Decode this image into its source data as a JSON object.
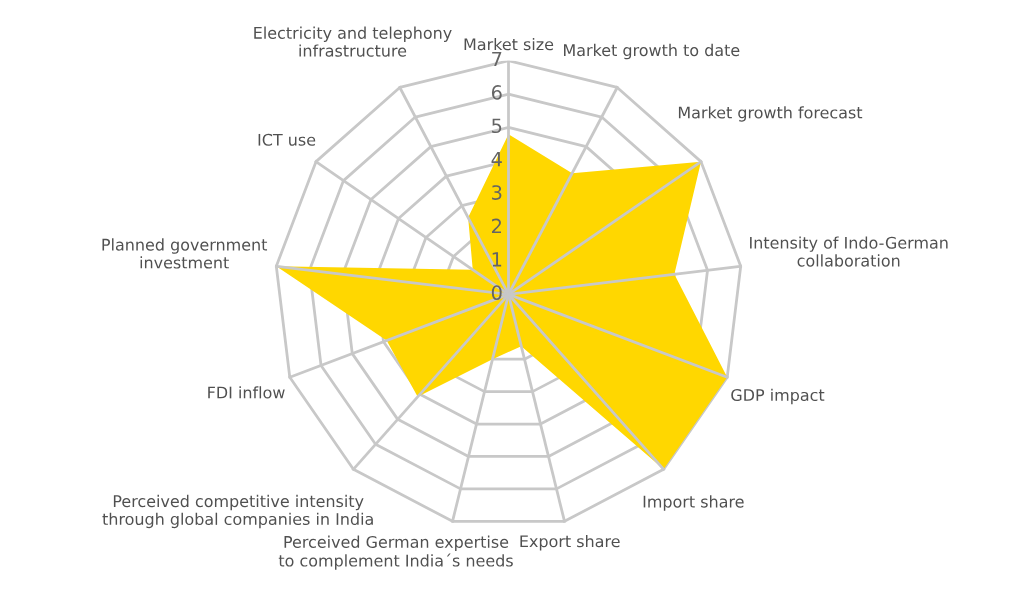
{
  "chart_data": {
    "type": "radar",
    "categories": [
      "Market size",
      "Market growth to date",
      "Market growth forecast",
      "Intensity of Indo-German collaboration",
      "GDP impact",
      "Import share",
      "Export share",
      "Perceived German expertise to complement India´s needs",
      "Perceived competitive intensity through global companies in India",
      "FDI inflow",
      "Planned government investment",
      "ICT use",
      "Electricity and telephony infrastructure"
    ],
    "series": [
      {
        "color": "#ffd700",
        "values": [
          4.8,
          4.1,
          7,
          5,
          7,
          7,
          1.6,
          2.0,
          4.1,
          3.9,
          7,
          1.3,
          2.6
        ]
      }
    ],
    "ylim": [
      0,
      7
    ],
    "yticks": [
      0,
      1,
      2,
      3,
      4,
      5,
      6,
      7
    ],
    "grid": true,
    "legend": false
  }
}
